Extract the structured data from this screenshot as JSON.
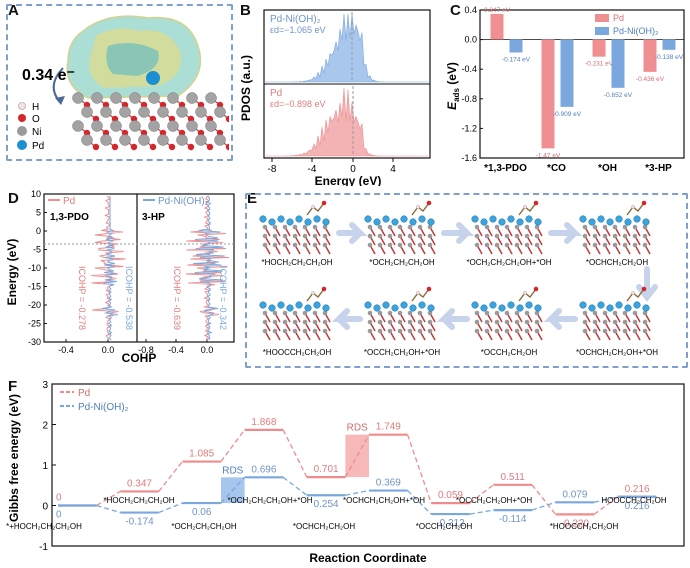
{
  "panels": {
    "A": {
      "letter": "A",
      "charge_label": "0.34 e⁻",
      "legend": [
        {
          "label": "H",
          "color": "#f4e4e4"
        },
        {
          "label": "O",
          "color": "#d7262b"
        },
        {
          "label": "Ni",
          "color": "#9a9a9a"
        },
        {
          "label": "Pd",
          "color": "#1b8fd1"
        }
      ]
    },
    "B": {
      "letter": "B",
      "ylabel": "PDOS (a.u.)",
      "xlabel": "Energy (eV)",
      "top": {
        "name": "Pd-Ni(OH)₂",
        "center": "εd=−1.065 eV",
        "color": "#7aa8de"
      },
      "bottom": {
        "name": "Pd",
        "center": "εd=−0.898 eV",
        "color": "#ec8f91"
      },
      "xticks": [
        "-8",
        "-4",
        "0",
        "4"
      ]
    },
    "C": {
      "letter": "C",
      "ylabel": "E_ads (eV)",
      "ylabel_main": "E",
      "ylabel_sub": "ads",
      "ylabel_unit": " (eV)"
    },
    "D": {
      "letter": "D",
      "ylabel": "Energy (eV)",
      "xlabel": "COHP",
      "left": {
        "name": "Pd",
        "species": "1,3-PDO",
        "icohp1": "ICOHP = -0.278",
        "icohp2": "ICOHP = -0.538"
      },
      "right": {
        "name": "Pd-Ni(OH)₂",
        "species": "3-HP",
        "icohp1": "ICOHP = -0.639",
        "icohp2": "ICOHP = -0.342"
      },
      "xticks_left": [
        "-0.4",
        "0.0"
      ],
      "xticks_right": [
        "-0.8",
        "-0.4",
        "0.0"
      ],
      "yticks": [
        "10",
        "5",
        "0",
        "-5",
        "-10",
        "-15",
        "-20",
        "-25",
        "-30"
      ]
    },
    "E": {
      "letter": "E",
      "states": [
        "*HOCH₂CH₂CH₂OH",
        "*OCH₂CH₂CH₂OH",
        "*OCH₂CH₂CH₂OH+*OH",
        "*OCHCH₂CH₂OH",
        "*HOOCCH₂CH₂OH",
        "*OCCH₂CH₂OH+*OH",
        "*OCCH₂CH₂OH",
        "*OCHCH₂CH₂OH+*OH"
      ]
    },
    "F": {
      "letter": "F",
      "ylabel": "Gibbs free energy (eV)",
      "xlabel": "Reaction Coordinate",
      "rds": "RDS",
      "bottom_labels": [
        "*HOCH₂CH₂CH₂OH",
        "*+HOCH₂CH₂CH₂OH",
        "*OCH₂CH₂CH₂OH+*OH",
        "*OCH₂CH₂CH₂OH",
        "*OCHCH₂CH₂OH+*OH",
        "*OCHCH₂CH₂OH",
        "*OCCH₂CH₂OH+*OH",
        "*OCCH₂CH₂OH",
        "*HOOCCH₂CH₂OH",
        "HOOCCH₂CH₂OH"
      ]
    }
  },
  "chart_data": [
    {
      "type": "bar",
      "panel": "C",
      "categories": [
        "*1,3-PDO",
        "*CO",
        "*OH",
        "*3-HP"
      ],
      "series": [
        {
          "name": "Pd",
          "color": "#f08f91",
          "values": [
            0.347,
            -1.47,
            -0.231,
            -0.436
          ],
          "labels": [
            "0.347 eV",
            "-1.47 eV",
            "-0.231 eV",
            "-0.436 eV"
          ]
        },
        {
          "name": "Pd-Ni(OH)₂",
          "color": "#7aa8de",
          "values": [
            -0.174,
            -0.909,
            -0.652,
            -0.138
          ],
          "labels": [
            "-0.174 eV",
            "-0.909 eV",
            "-0.652 eV",
            "-0.138 eV"
          ]
        }
      ],
      "ylim": [
        -1.6,
        0.4
      ],
      "yticks": [
        "0.4",
        "0.0",
        "-0.4",
        "-0.8",
        "-1.2",
        "-1.6"
      ]
    },
    {
      "type": "line",
      "panel": "F",
      "series": [
        {
          "name": "Pd",
          "color": "#ef8b8d",
          "values": [
            0,
            0.347,
            1.085,
            1.868,
            0.701,
            1.749,
            0.059,
            0.511,
            -0.22,
            0.216
          ],
          "labels": [
            "0",
            "0.347",
            "1.085",
            "1.868",
            "0.701",
            "1.749",
            "0.059",
            "0.511",
            "-0.220",
            "0.216"
          ]
        },
        {
          "name": "Pd-Ni(OH)₂",
          "color": "#7aa8de",
          "values": [
            0,
            -0.174,
            0.06,
            0.696,
            0.254,
            0.369,
            -0.212,
            -0.114,
            0.079,
            0.216
          ],
          "labels": [
            "0",
            "-0.174",
            "0.06",
            "0.696",
            "0.254",
            "0.369",
            "-0.212",
            "-0.114",
            "0.079",
            "0.216"
          ]
        }
      ],
      "ylim": [
        -1,
        3
      ],
      "yticks": [
        "3",
        "2",
        "1",
        "0",
        "-1"
      ]
    }
  ]
}
